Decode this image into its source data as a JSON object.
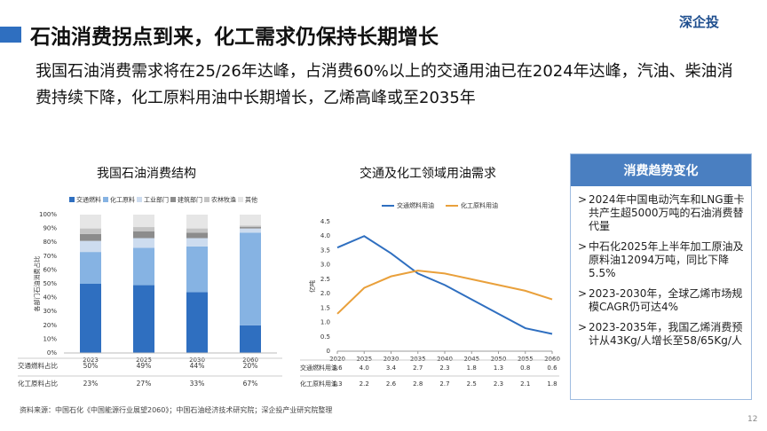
{
  "header": {
    "title": "石油消费拐点到来，化工需求仍保持长期增长",
    "logo": "深企投",
    "subtitle": "我国石油消费需求将在25/26年达峰，占消费60%以上的交通用油已在2024年达峰，汽油、柴油消费持续下降，化工原料用油中长期增长，乙烯高峰或至2035年"
  },
  "chart_data": [
    {
      "type": "stacked_bar",
      "title": "我国石油消费结构",
      "ylabel": "各部门石油消费占比",
      "categories": [
        "2023",
        "2025",
        "2030",
        "2060"
      ],
      "series": [
        {
          "name": "交通燃料",
          "color": "#2f6fc0",
          "values": [
            50,
            49,
            44,
            20
          ],
          "row_label": "交通燃料占比",
          "value_labels": [
            "50%",
            "49%",
            "44%",
            "20%"
          ]
        },
        {
          "name": "化工原料",
          "color": "#86b3e3",
          "values": [
            23,
            27,
            33,
            67
          ],
          "row_label": "化工原料占比",
          "value_labels": [
            "23%",
            "27%",
            "33%",
            "67%"
          ]
        },
        {
          "name": "工业部门",
          "color": "#cddcef",
          "values": [
            8,
            7,
            6,
            3
          ]
        },
        {
          "name": "建筑部门",
          "color": "#8c8c8c",
          "values": [
            5,
            5,
            4,
            1
          ]
        },
        {
          "name": "农林牧渔",
          "color": "#c4c4c4",
          "values": [
            4,
            3,
            3,
            1
          ]
        },
        {
          "name": "其他",
          "color": "#e6e6e6",
          "values": [
            10,
            9,
            10,
            8
          ]
        }
      ],
      "ylim": [
        0,
        100
      ],
      "yticks": [
        {
          "value": 0,
          "label": "0%"
        },
        {
          "value": 10,
          "label": "10%"
        },
        {
          "value": 20,
          "label": "20%"
        },
        {
          "value": 30,
          "label": "30%"
        },
        {
          "value": 40,
          "label": "40%"
        },
        {
          "value": 50,
          "label": "50%"
        },
        {
          "value": 60,
          "label": "60%"
        },
        {
          "value": 70,
          "label": "70%"
        },
        {
          "value": 80,
          "label": "80%"
        },
        {
          "value": 90,
          "label": "90%"
        },
        {
          "value": 100,
          "label": "100%"
        }
      ],
      "grid": false
    },
    {
      "type": "line",
      "title": "交通及化工领域用油需求",
      "ylabel": "亿吨",
      "x": [
        2020,
        2025,
        2030,
        2035,
        2040,
        2045,
        2050,
        2055,
        2060
      ],
      "series": [
        {
          "name": "交通燃料用油",
          "color": "#2f6fc0",
          "values": [
            3.6,
            4.0,
            3.4,
            2.7,
            2.3,
            1.8,
            1.3,
            0.8,
            0.6
          ],
          "value_labels": [
            "3.6",
            "4.0",
            "3.4",
            "2.7",
            "2.3",
            "1.8",
            "1.3",
            "0.8",
            "0.6"
          ]
        },
        {
          "name": "化工原料用油",
          "color": "#e9a03b",
          "values": [
            1.3,
            2.2,
            2.6,
            2.8,
            2.7,
            2.5,
            2.3,
            2.1,
            1.8
          ],
          "value_labels": [
            "1.3",
            "2.2",
            "2.6",
            "2.8",
            "2.7",
            "2.5",
            "2.3",
            "2.1",
            "1.8"
          ]
        }
      ],
      "xlim": [
        2020,
        2060
      ],
      "xticks": [
        2020,
        2025,
        2030,
        2035,
        2040,
        2045,
        2050,
        2055,
        2060
      ],
      "ylim": [
        0,
        4.5
      ],
      "yticks": [
        0,
        0.5,
        {
          "value": 1,
          "label": "1.0"
        },
        1.5,
        {
          "value": 2,
          "label": "2.0"
        },
        2.5,
        {
          "value": 3,
          "label": "3.0"
        },
        3.5,
        {
          "value": 4,
          "label": "4.0"
        },
        4.5
      ],
      "grid": false
    }
  ],
  "panel": {
    "title": "消费趋势变化",
    "items": [
      "2024年中国电动汽车和LNG重卡共产生超5000万吨的石油消费替代量",
      "中石化2025年上半年加工原油及原料油12094万吨，同比下降5.5%",
      "2023-2030年，全球乙烯市场规模CAGR仍可达4%",
      "2023-2035年，我国乙烯消费预计从43Kg/人增长至58/65Kg/人"
    ]
  },
  "source": "资料来源：中国石化《中国能源行业展望2060》；中国石油经济技术研究院；深企投产业研究院整理",
  "page_number": "12"
}
